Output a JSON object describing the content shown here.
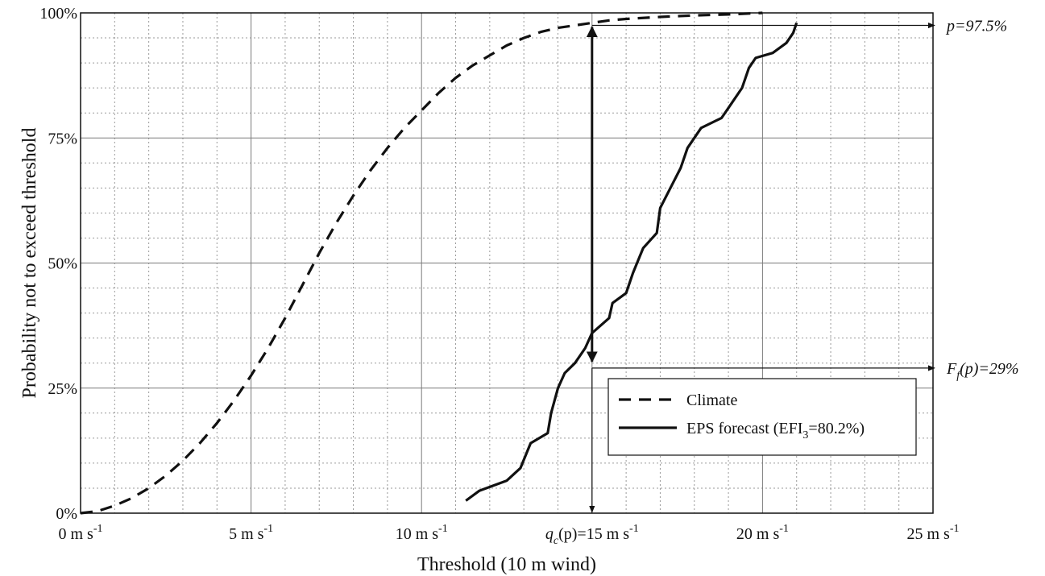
{
  "chart_data": {
    "type": "line",
    "xlabel": "Threshold (10 m wind)",
    "ylabel": "Probability not to exceed threshold",
    "xlim": [
      0,
      25
    ],
    "ylim": [
      0,
      100
    ],
    "x_ticks": [
      {
        "value": 0,
        "base": "0 m s",
        "sup": "-1"
      },
      {
        "value": 5,
        "base": "5 m s",
        "sup": "-1"
      },
      {
        "value": 10,
        "base": "10 m s",
        "sup": "-1"
      },
      {
        "value": 15,
        "base": "15 m s",
        "sup": "-1"
      },
      {
        "value": 20,
        "base": "20 m s",
        "sup": "-1"
      },
      {
        "value": 25,
        "base": "25 m s",
        "sup": "-1"
      }
    ],
    "y_ticks": [
      {
        "value": 0,
        "label": "0%"
      },
      {
        "value": 25,
        "label": "25%"
      },
      {
        "value": 50,
        "label": "50%"
      },
      {
        "value": 75,
        "label": "75%"
      },
      {
        "value": 100,
        "label": "100%"
      }
    ],
    "grid": true,
    "legend_position": "bottom-right",
    "series": [
      {
        "name": "Climate",
        "style": "dashed",
        "color": "#111111",
        "points": [
          [
            0.0,
            0.0
          ],
          [
            0.5,
            0.4
          ],
          [
            1.0,
            1.5
          ],
          [
            1.5,
            3.0
          ],
          [
            2.0,
            5.0
          ],
          [
            2.5,
            7.5
          ],
          [
            3.0,
            10.5
          ],
          [
            3.5,
            14.0
          ],
          [
            4.0,
            18.0
          ],
          [
            4.5,
            22.5
          ],
          [
            5.0,
            27.5
          ],
          [
            5.5,
            33.0
          ],
          [
            6.0,
            39.0
          ],
          [
            6.5,
            45.5
          ],
          [
            7.0,
            52.0
          ],
          [
            7.5,
            58.0
          ],
          [
            8.0,
            63.5
          ],
          [
            8.5,
            68.5
          ],
          [
            9.0,
            73.0
          ],
          [
            9.5,
            77.0
          ],
          [
            10.0,
            80.5
          ],
          [
            10.5,
            84.0
          ],
          [
            11.0,
            87.0
          ],
          [
            11.5,
            89.5
          ],
          [
            12.0,
            91.5
          ],
          [
            12.5,
            93.5
          ],
          [
            13.0,
            95.0
          ],
          [
            13.5,
            96.2
          ],
          [
            14.0,
            97.0
          ],
          [
            14.5,
            97.5
          ],
          [
            15.0,
            98.0
          ],
          [
            15.5,
            98.5
          ],
          [
            16.0,
            98.8
          ],
          [
            17.0,
            99.2
          ],
          [
            18.0,
            99.5
          ],
          [
            19.0,
            99.7
          ],
          [
            20.0,
            100.0
          ]
        ]
      },
      {
        "name": "EPS forecast (EFI",
        "name_sub": "3",
        "name_suffix": "=80.2%)",
        "style": "solid",
        "color": "#111111",
        "points": [
          [
            11.3,
            2.5
          ],
          [
            11.7,
            4.5
          ],
          [
            12.5,
            6.5
          ],
          [
            12.9,
            9.0
          ],
          [
            13.2,
            14.0
          ],
          [
            13.7,
            16.0
          ],
          [
            13.8,
            20.0
          ],
          [
            14.0,
            25.0
          ],
          [
            14.2,
            28.0
          ],
          [
            14.5,
            30.0
          ],
          [
            14.8,
            33.0
          ],
          [
            15.0,
            36.0
          ],
          [
            15.5,
            39.0
          ],
          [
            15.6,
            42.0
          ],
          [
            16.0,
            44.0
          ],
          [
            16.2,
            48.0
          ],
          [
            16.5,
            53.0
          ],
          [
            16.9,
            56.0
          ],
          [
            17.0,
            61.0
          ],
          [
            17.3,
            65.0
          ],
          [
            17.6,
            69.0
          ],
          [
            17.8,
            73.0
          ],
          [
            18.2,
            77.0
          ],
          [
            18.8,
            79.0
          ],
          [
            19.1,
            82.0
          ],
          [
            19.4,
            85.0
          ],
          [
            19.6,
            89.0
          ],
          [
            19.8,
            91.0
          ],
          [
            20.3,
            92.0
          ],
          [
            20.7,
            94.0
          ],
          [
            20.9,
            96.0
          ],
          [
            21.0,
            98.0
          ]
        ]
      }
    ],
    "annotations": {
      "p_label": "p=97.5%",
      "p_value": 97.5,
      "f_label_prefix": "F",
      "f_label_sub": "f",
      "f_label_suffix": "(p)=29%",
      "f_value": 29,
      "q_label_prefix": "q",
      "q_label_sub": "c",
      "q_label_suffix": "(p)=15 m s",
      "q_label_sup": "-1",
      "q_value": 15
    }
  }
}
